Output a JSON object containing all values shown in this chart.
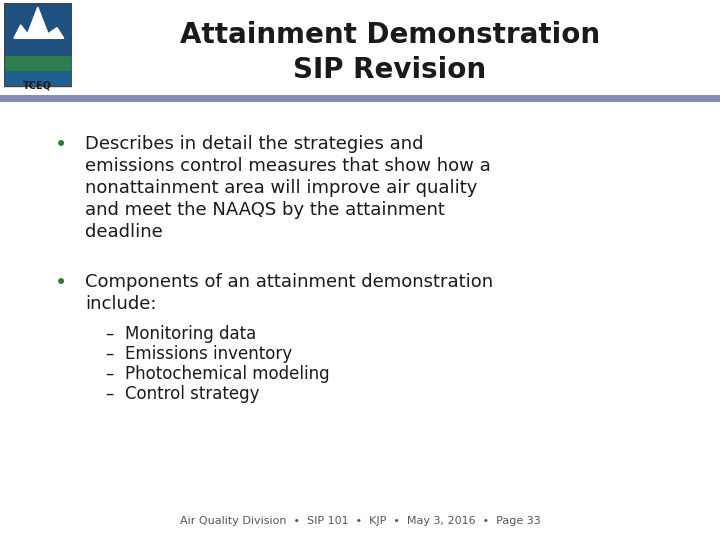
{
  "title_line1": "Attainment Demonstration",
  "title_line2": "SIP Revision",
  "title_color": "#1a1a1a",
  "title_fontsize": 20,
  "bg_color": "#ffffff",
  "divider_color": "#8888bb",
  "bullet_color": "#2e7d32",
  "bullet1_text_lines": [
    "Describes in detail the strategies and",
    "emissions control measures that show how a",
    "nonattainment area will improve air quality",
    "and meet the NAAQS by the attainment",
    "deadline"
  ],
  "bullet2_text_lines": [
    "Components of an attainment demonstration",
    "include:"
  ],
  "sub_bullets": [
    "Monitoring data",
    "Emissions inventory",
    "Photochemical modeling",
    "Control strategy"
  ],
  "body_fontsize": 13,
  "sub_fontsize": 12,
  "footer_text": "Air Quality Division  •  SIP 101  •  KJP  •  May 3, 2016  •  Page 33",
  "footer_fontsize": 8,
  "footer_color": "#555555",
  "text_color": "#1a1a1a",
  "logo_colors": {
    "sky": "#1e5080",
    "cloud": "#ffffff",
    "land": "#2e7d50",
    "water": "#1e6090"
  }
}
